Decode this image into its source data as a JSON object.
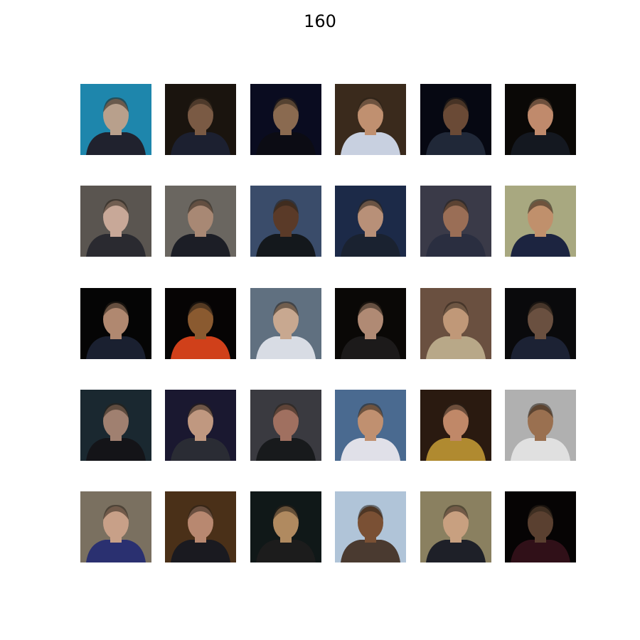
{
  "title": "160"
}
